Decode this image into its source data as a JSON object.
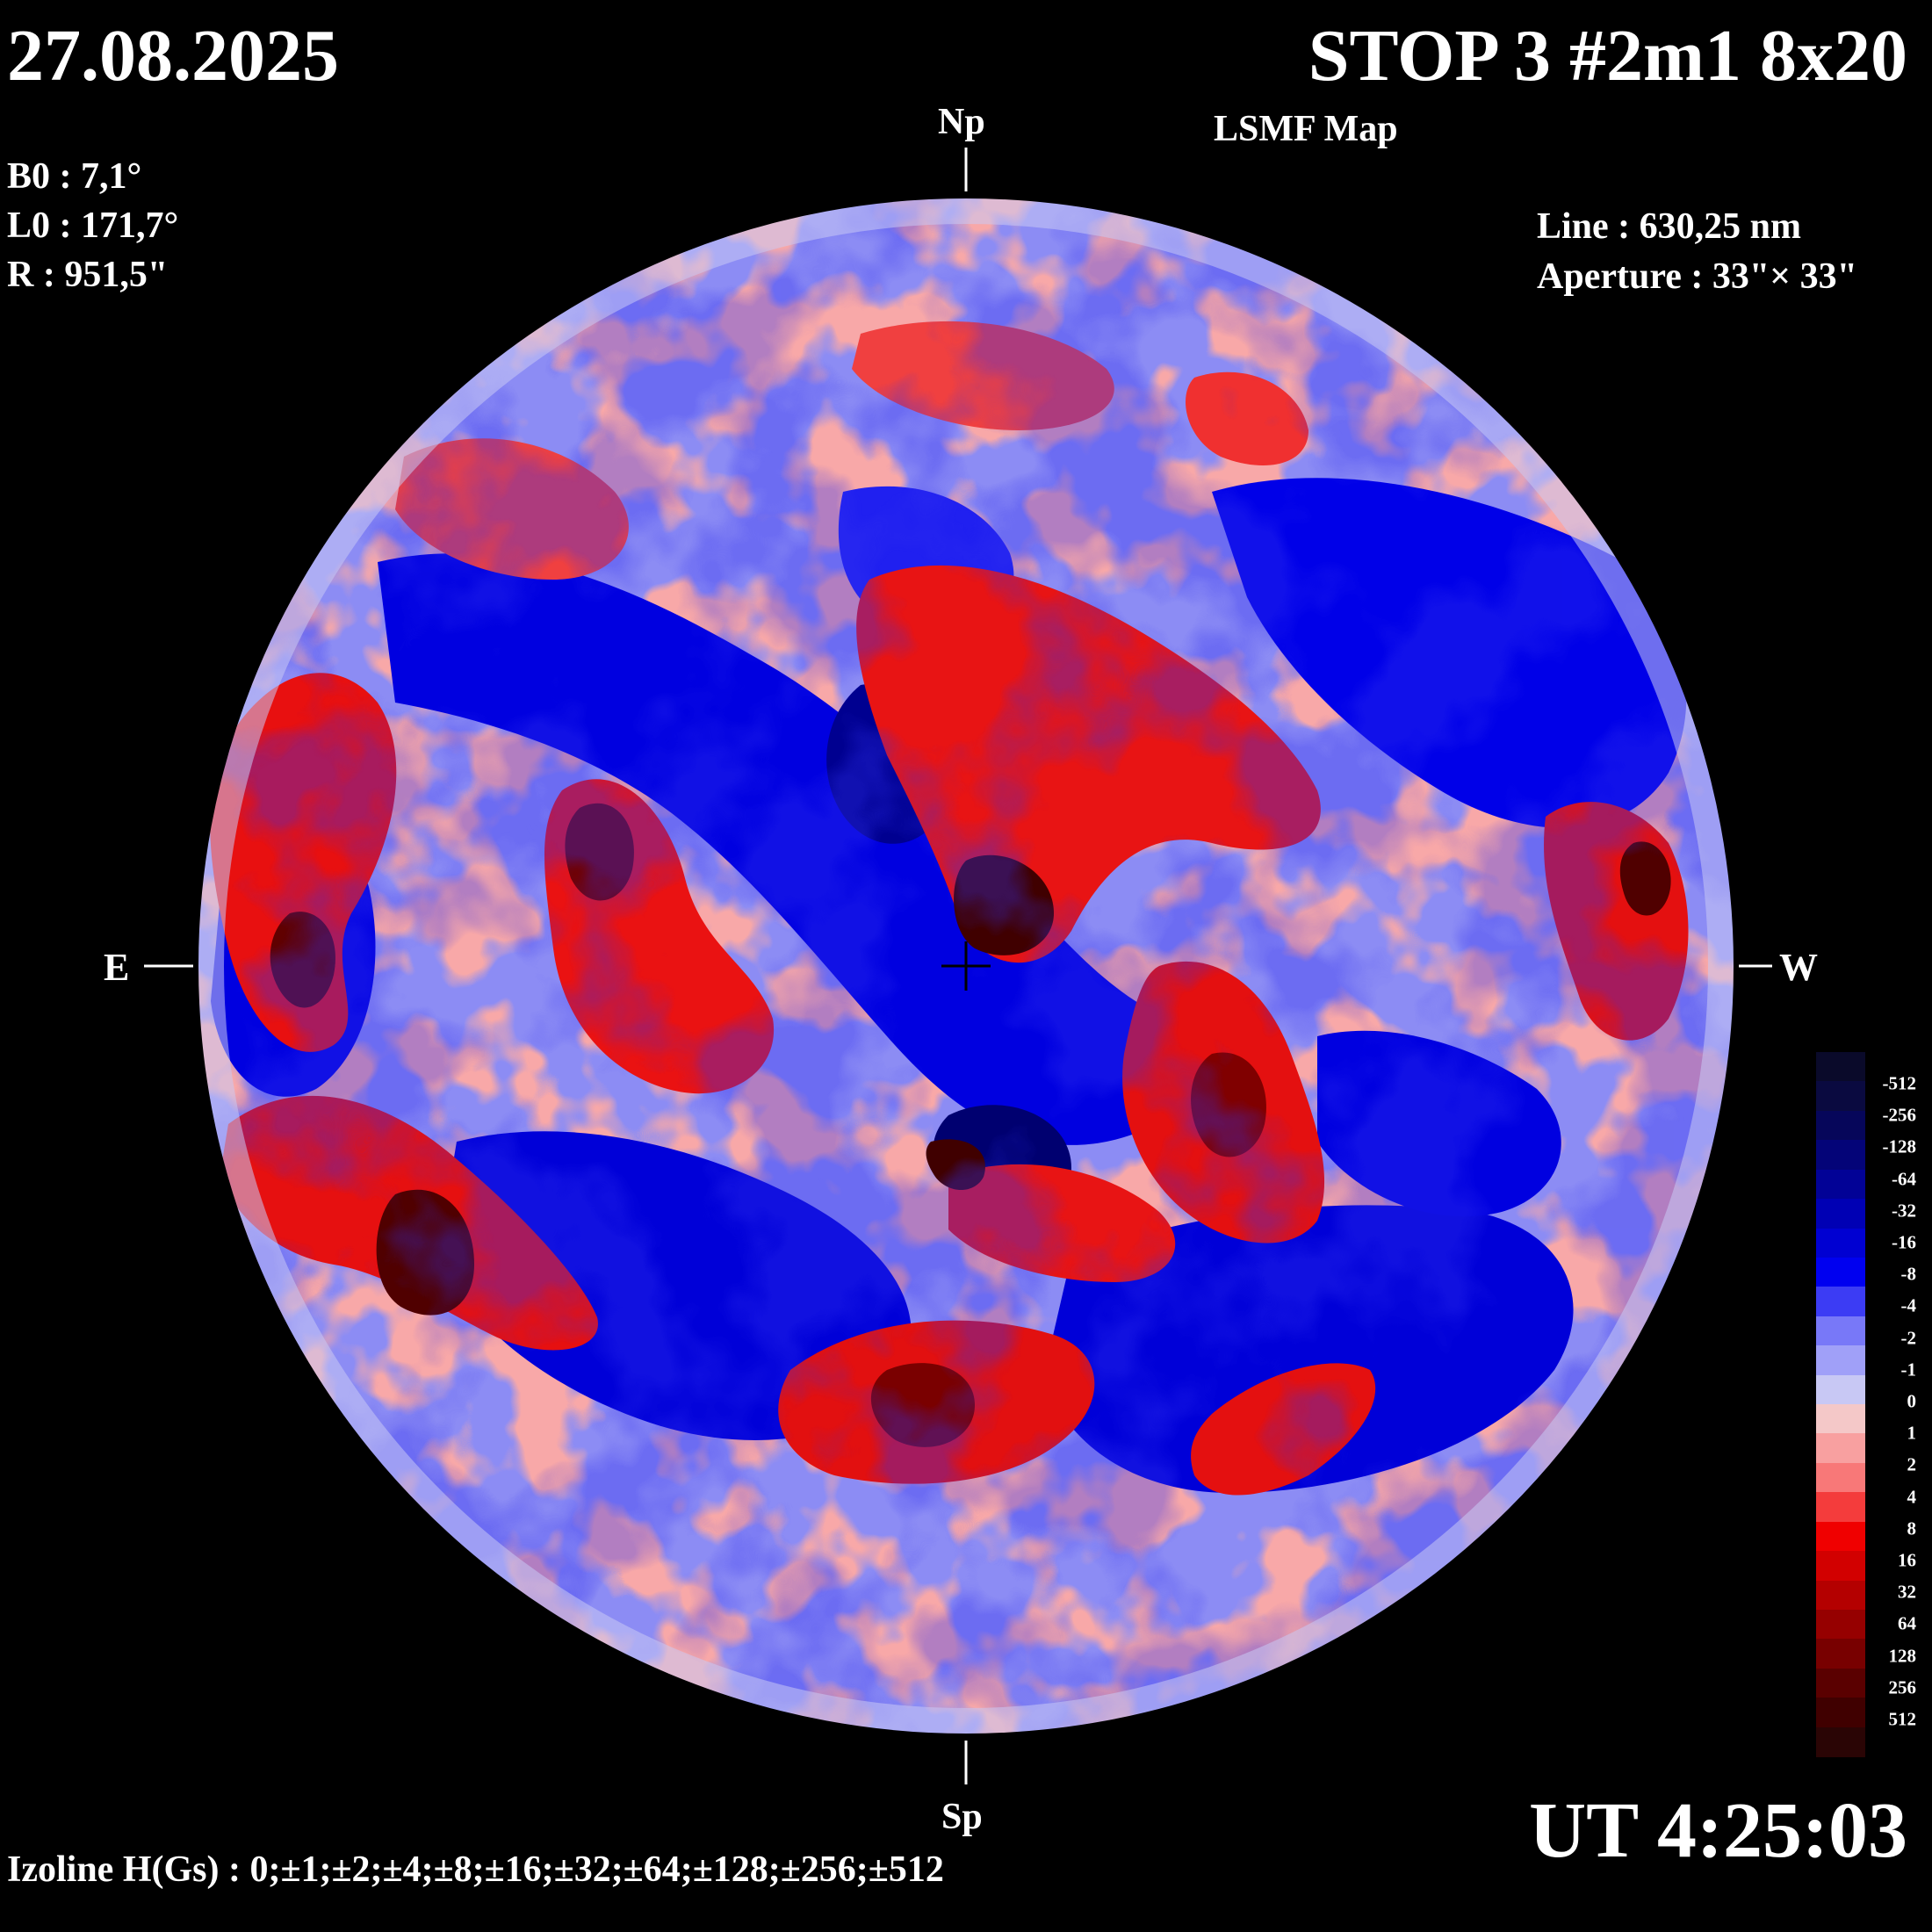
{
  "header": {
    "date": "27.08.2025",
    "title": "STOP 3 #2m1 8x20",
    "subtitle": "LSMF  Map"
  },
  "params": {
    "b0": "B0 : 7,1°",
    "l0": "L0 : 171,7°",
    "radius": "R  : 951,5\"",
    "line": "Line :  630,25 nm",
    "aperture": "Aperture : 33\"× 33\""
  },
  "orientation": {
    "north": "Np",
    "south": "Sp",
    "east": "E",
    "west": "W"
  },
  "time": "UT 4:25:03",
  "izoline": "Izoline H(Gs) : 0;±1;±2;±4;±8;±16;±32;±64;±128;±256;±512",
  "colorbar": {
    "labels": [
      "-512",
      "-256",
      "-128",
      "-64",
      "-32",
      "-16",
      "-8",
      "-4",
      "-2",
      "-1",
      "0",
      "1",
      "2",
      "4",
      "8",
      "16",
      "32",
      "64",
      "128",
      "256",
      "512"
    ],
    "colors": [
      "#0a0a2a",
      "#0a0a40",
      "#06065a",
      "#040478",
      "#020296",
      "#0000b4",
      "#0000d2",
      "#0000f0",
      "#3c3cf4",
      "#7878f8",
      "#a0a0f8",
      "#c8c8f4",
      "#f4c8c8",
      "#f8a0a0",
      "#f87878",
      "#f43c3c",
      "#f00000",
      "#d20000",
      "#b40000",
      "#960000",
      "#780000",
      "#5a0000",
      "#400000",
      "#2a0505"
    ]
  },
  "map_legend": {
    "positive_color": "#e81414",
    "negative_color": "#0a0adc",
    "neutral_color": "#ffffff"
  }
}
